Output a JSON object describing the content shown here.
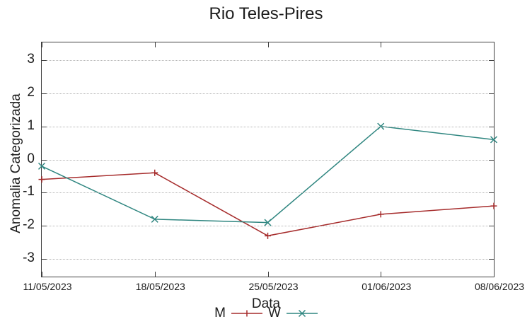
{
  "chart_data": {
    "type": "line",
    "title": "Rio Teles-Pires",
    "xlabel": "Data",
    "ylabel": "Anomalia Categorizada",
    "x": [
      "11/05/2023",
      "18/05/2023",
      "25/05/2023",
      "01/06/2023",
      "08/06/2023"
    ],
    "y_ticks": [
      3,
      2,
      1,
      0,
      -1,
      -2,
      -3
    ],
    "ylim": [
      -3.53,
      3.53
    ],
    "grid": true,
    "legend_position": "bottom-center",
    "series": [
      {
        "name": "M",
        "color": "#a62c2c",
        "marker": "plus",
        "values": [
          -0.6,
          -0.4,
          -2.3,
          -1.65,
          -1.4
        ]
      },
      {
        "name": "W",
        "color": "#2f8680",
        "marker": "cross",
        "values": [
          -0.2,
          -1.8,
          -1.9,
          1.0,
          0.6
        ]
      }
    ],
    "colors": {
      "border": "#404040",
      "grid": "#b5b5b5",
      "text": "#1c1c1c"
    }
  }
}
